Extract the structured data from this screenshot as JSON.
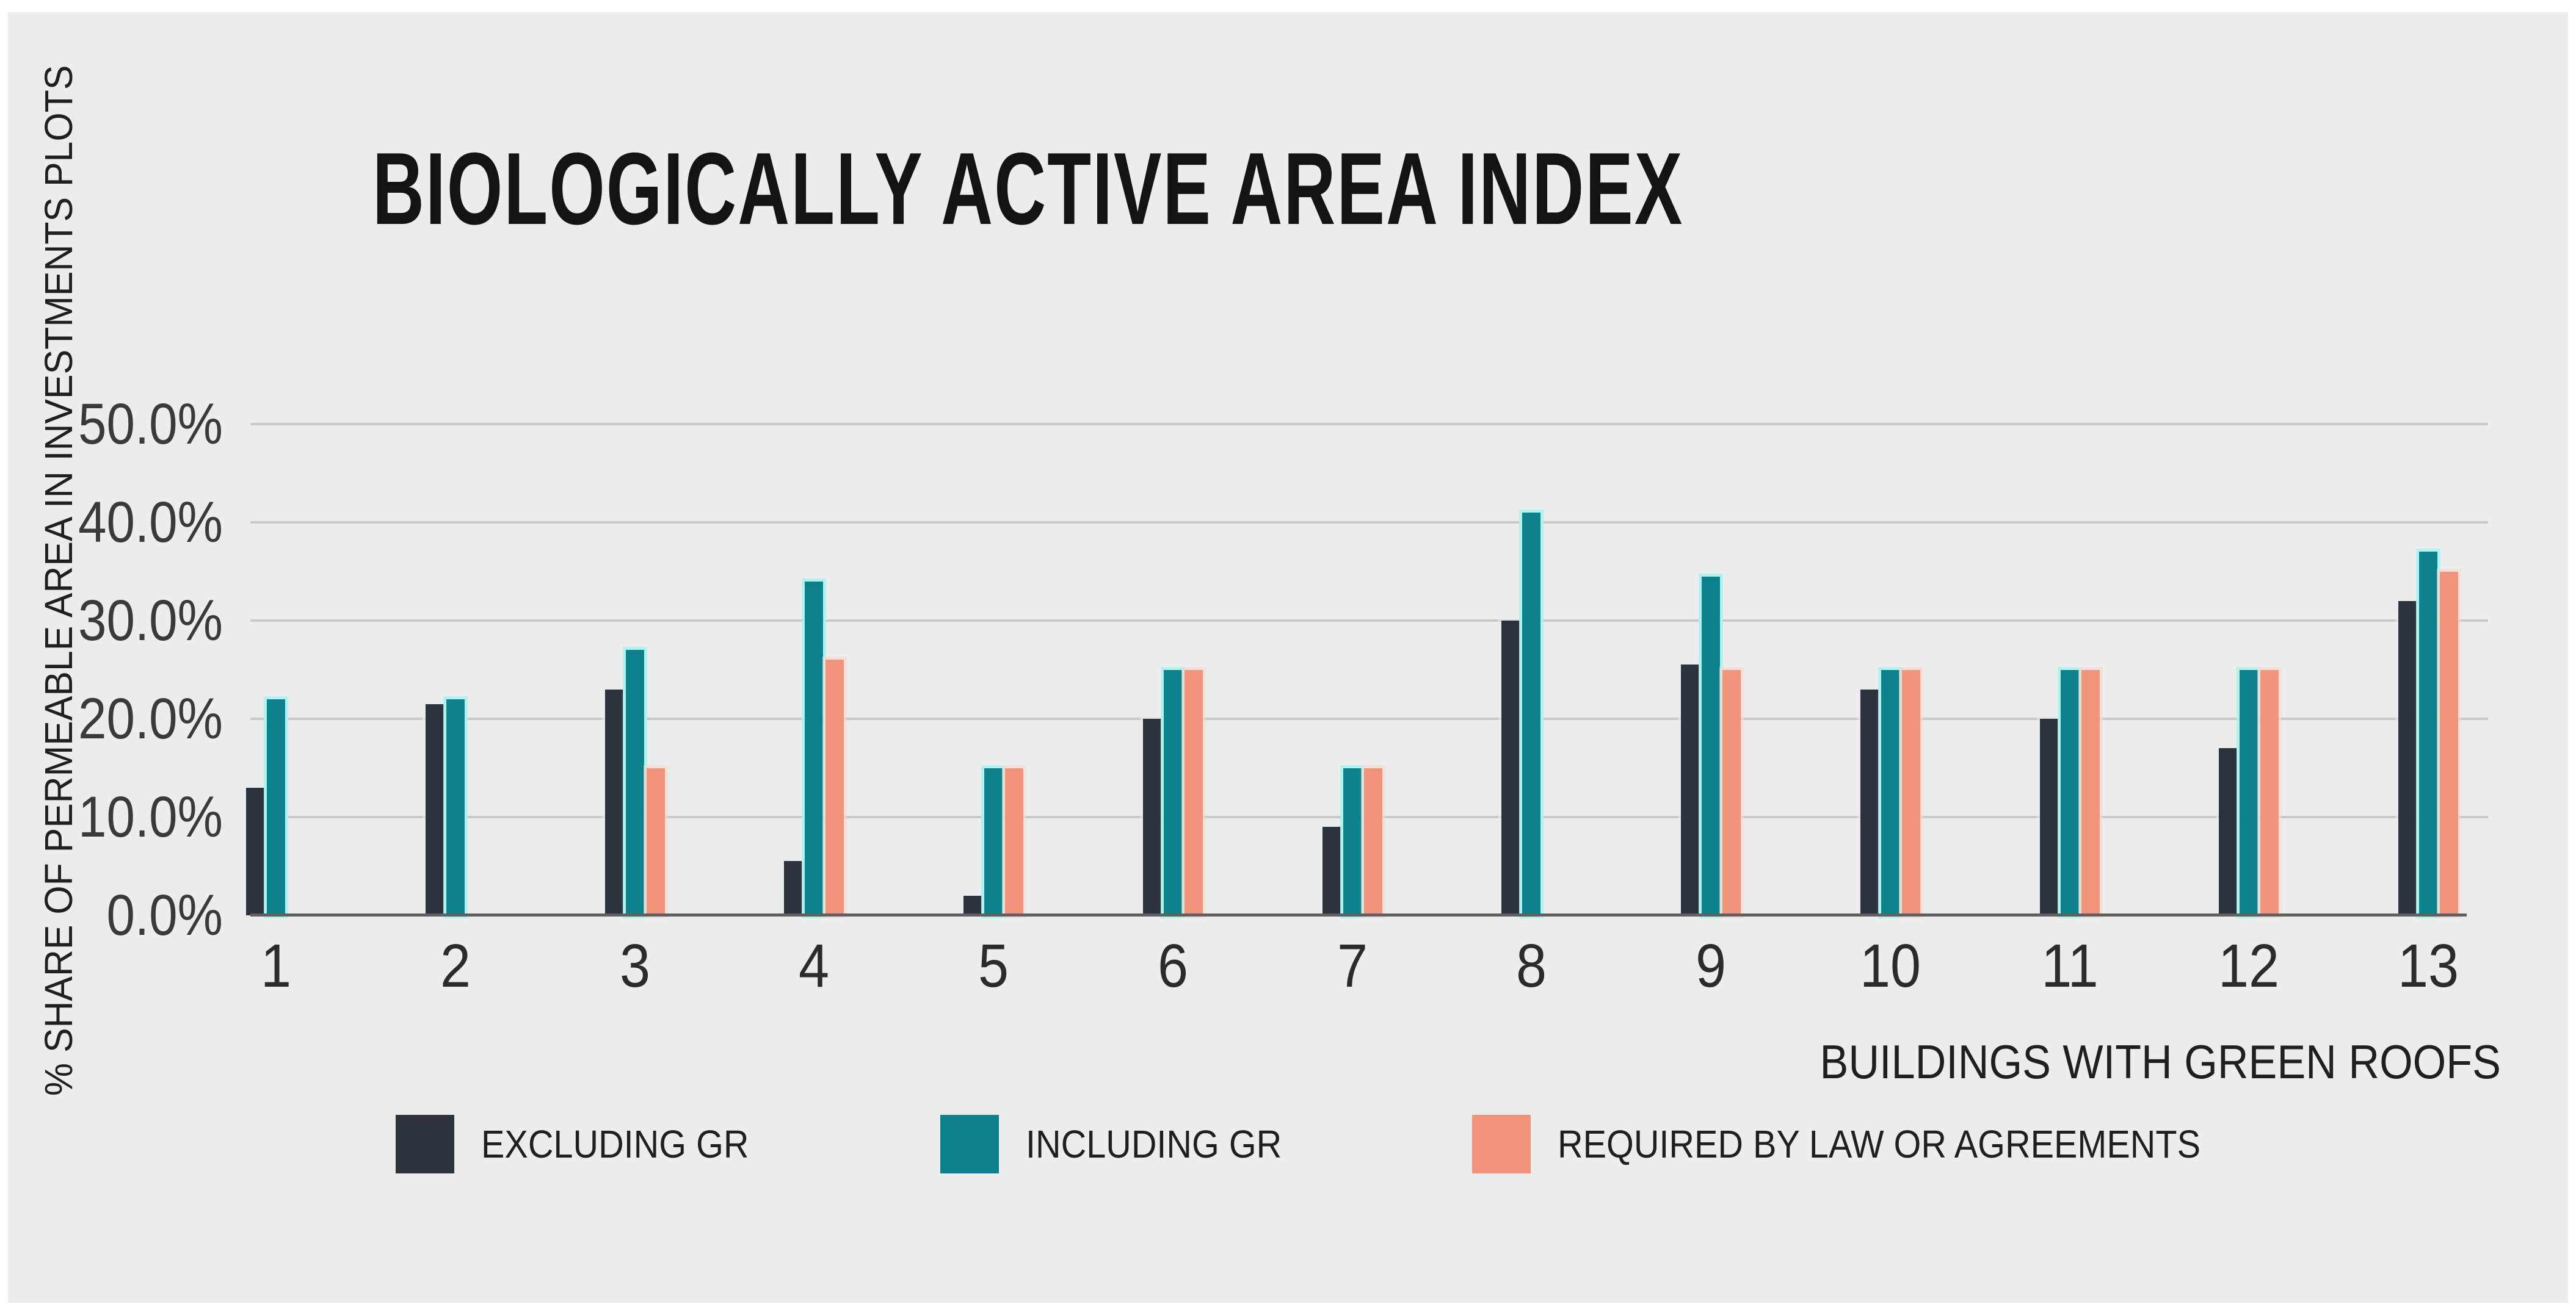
{
  "title": "BIOLOGICALLY ACTIVE AREA INDEX",
  "colors": {
    "page_background": "#FFFFFF",
    "panel_background": "#EDEDED",
    "gridline": "#C9C9C9",
    "axis_line": "#606060",
    "title_text": "#111315",
    "tick_text": "#3A3A3A",
    "series_dark": "#2C333D",
    "series_teal": "#0E828C",
    "series_salmon": "#F2937C",
    "teal_glow": "#ABF2EF"
  },
  "chart_data": {
    "type": "bar",
    "title": "BIOLOGICALLY ACTIVE AREA INDEX",
    "xlabel": "BUILDINGS WITH GREEN ROOFS",
    "ylabel": "% SHARE  OF PERMEABLE AREA IN INVESTMENTS PLOTS",
    "categories": [
      "1",
      "2",
      "3",
      "4",
      "5",
      "6",
      "7",
      "8",
      "9",
      "10",
      "11",
      "12",
      "13"
    ],
    "series": [
      {
        "name": "EXCLUDING GR",
        "color": "#2C333D",
        "glow": "rgba(232,236,242,0.55)",
        "values": [
          13,
          21.5,
          23,
          5.5,
          2,
          20,
          9,
          30,
          25.5,
          23,
          20,
          17,
          32
        ]
      },
      {
        "name": "INCLUDING GR",
        "color": "#0E828C",
        "glow": "rgba(171,242,239,0.9)",
        "values": [
          22,
          22,
          27,
          34,
          15,
          25,
          15,
          41,
          34.5,
          25,
          25,
          25,
          37
        ]
      },
      {
        "name": "REQUIRED BY LAW OR AGREEMENTS",
        "color": "#F2937C",
        "glow": "rgba(250,216,203,0.6)",
        "values": [
          0,
          0,
          15,
          26,
          15,
          25,
          15,
          0,
          25,
          25,
          25,
          25,
          35
        ]
      }
    ],
    "ylim": [
      0,
      50
    ],
    "ytick_step": 10,
    "ytick_labels": [
      "0.0%",
      "10.0%",
      "20.0%",
      "30.0%",
      "40.0%",
      "50.0%"
    ],
    "grid": true,
    "legend_position": "bottom"
  }
}
